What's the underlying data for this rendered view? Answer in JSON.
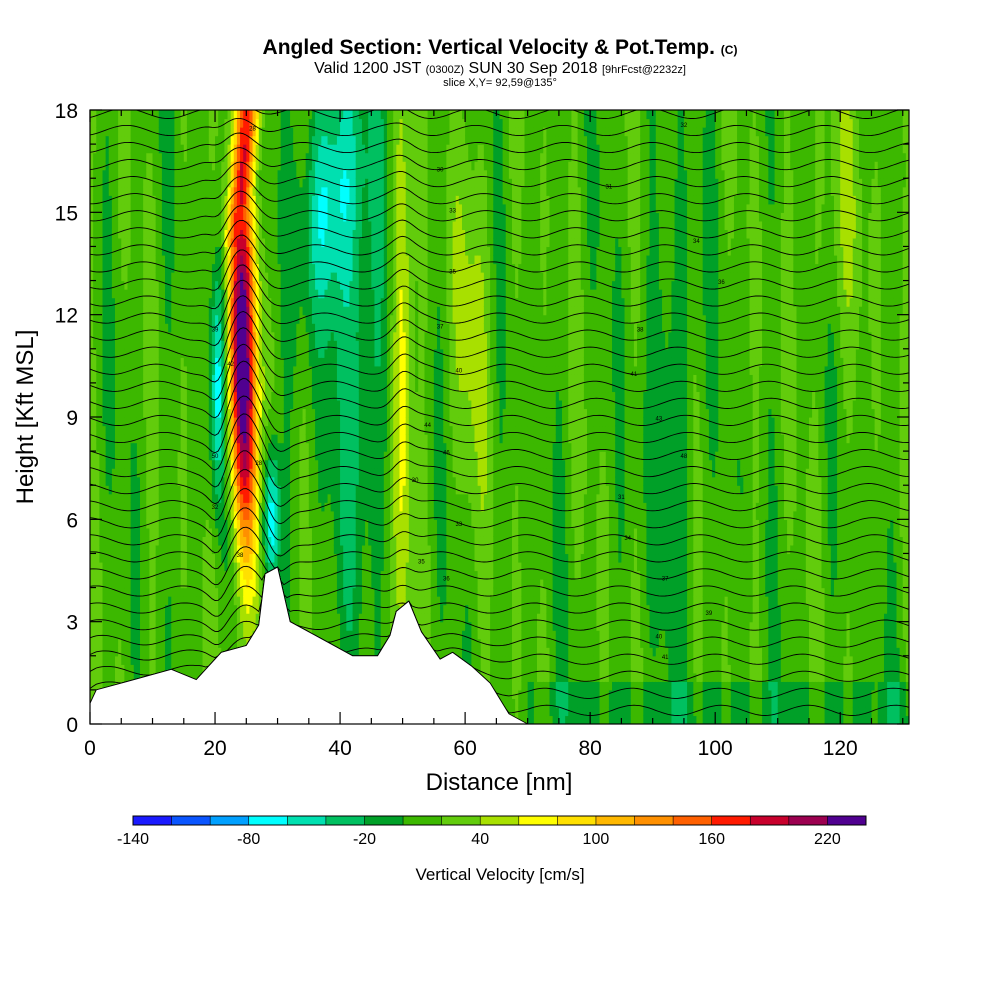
{
  "title": {
    "line1_main": "Angled Section: Vertical Velocity & Pot.Temp.",
    "line1_tag": "(C)",
    "line2_a": "Valid 1200 JST",
    "line2_b": "(0300Z)",
    "line2_c": "SUN 30 Sep 2018",
    "line2_d": "[9hrFcst@2232z]",
    "line3": "slice X,Y= 92,59@135°"
  },
  "chart_data": {
    "type": "heatmap",
    "xlabel": "Distance [nm]",
    "ylabel": "Height [Kft MSL]",
    "xlim": [
      0,
      131
    ],
    "ylim": [
      0,
      18
    ],
    "x_ticks": [
      "0",
      "20",
      "40",
      "60",
      "80",
      "100",
      "120"
    ],
    "y_ticks": [
      "0",
      "3",
      "6",
      "9",
      "12",
      "15",
      "18"
    ],
    "colorbar": {
      "label": "Vertical Velocity [cm/s]",
      "tick_labels": [
        "-140",
        "-80",
        "-20",
        "40",
        "100",
        "160",
        "220"
      ],
      "tick_values": [
        -140,
        -80,
        -20,
        40,
        100,
        160,
        220
      ],
      "min": -140,
      "max": 240,
      "step": 20,
      "colors": [
        "#1a1aff",
        "#0a55ff",
        "#00a0ff",
        "#00ffff",
        "#00e0b0",
        "#00c060",
        "#00a028",
        "#3cb800",
        "#62cc0c",
        "#a8e000",
        "#ffff00",
        "#ffe000",
        "#ffb800",
        "#ff9000",
        "#ff6000",
        "#ff1a00",
        "#c8002c",
        "#9c0050",
        "#500090"
      ]
    },
    "features": [
      {
        "name": "updraft",
        "x_center": 24.5,
        "peak": 230
      },
      {
        "name": "downdraft",
        "x_center": 20.5,
        "peak": -80
      },
      {
        "name": "updraft",
        "x_center": 50,
        "peak": 60
      },
      {
        "name": "downdraft",
        "x_center": 40,
        "peak": -60
      }
    ],
    "terrain_kft": [
      [
        0,
        0.6
      ],
      [
        1,
        1.0
      ],
      [
        7,
        1.3
      ],
      [
        13,
        1.6
      ],
      [
        17,
        1.3
      ],
      [
        21,
        2.1
      ],
      [
        25,
        2.3
      ],
      [
        27,
        2.9
      ],
      [
        28,
        4.4
      ],
      [
        30,
        4.6
      ],
      [
        32,
        3.0
      ],
      [
        35,
        2.7
      ],
      [
        38,
        2.4
      ],
      [
        42,
        2.0
      ],
      [
        46,
        2.0
      ],
      [
        48,
        2.6
      ],
      [
        49,
        3.3
      ],
      [
        51,
        3.6
      ],
      [
        53,
        2.7
      ],
      [
        56,
        1.9
      ],
      [
        58,
        2.1
      ],
      [
        61,
        1.7
      ],
      [
        64,
        1.2
      ],
      [
        66,
        0.6
      ],
      [
        67,
        0.3
      ],
      [
        70,
        0.0
      ],
      [
        131,
        0.0
      ]
    ],
    "contour_labels": [
      "28",
      "30",
      "31",
      "32",
      "33",
      "34",
      "35",
      "36",
      "37",
      "38",
      "39",
      "40",
      "41",
      "42",
      "43",
      "44",
      "46",
      "48",
      "50"
    ]
  }
}
